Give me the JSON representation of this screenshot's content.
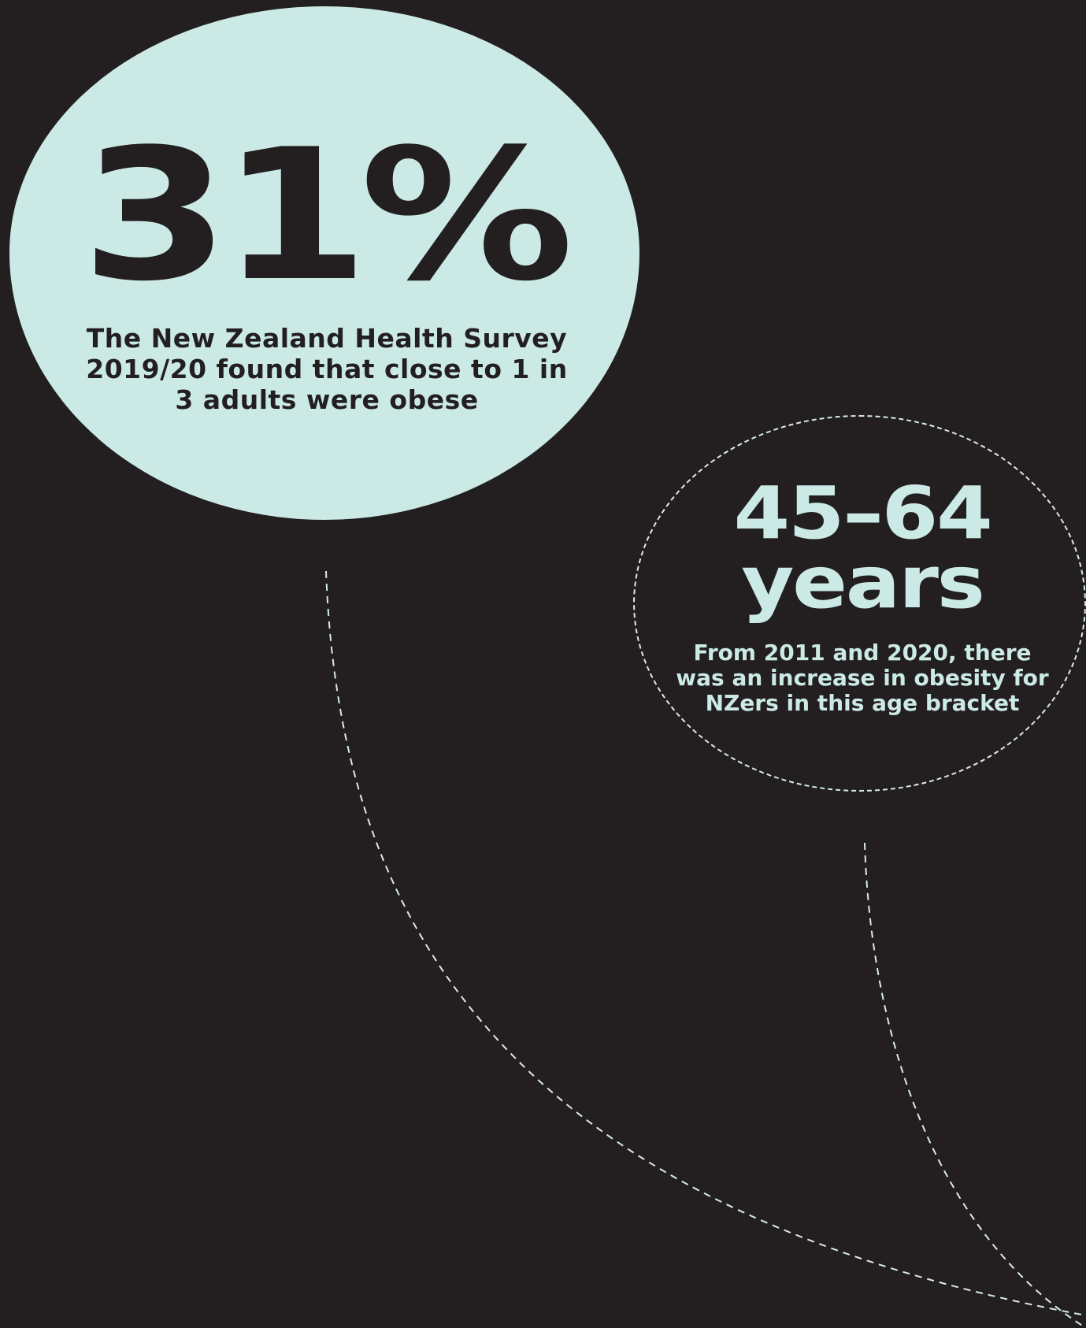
{
  "colors": {
    "background": "#231f20",
    "accent": "#cbeae5",
    "dashed_line": "#d9ece8"
  },
  "primary_stat": {
    "value": "31%",
    "caption": "The New Zealand Health Survey 2019/20 found that close to 1 in 3 adults were obese"
  },
  "secondary_stat": {
    "value_line1": "45–64",
    "value_line2": "years",
    "caption": "From 2011 and 2020, there was an increase in obesity for NZers in this age bracket"
  }
}
